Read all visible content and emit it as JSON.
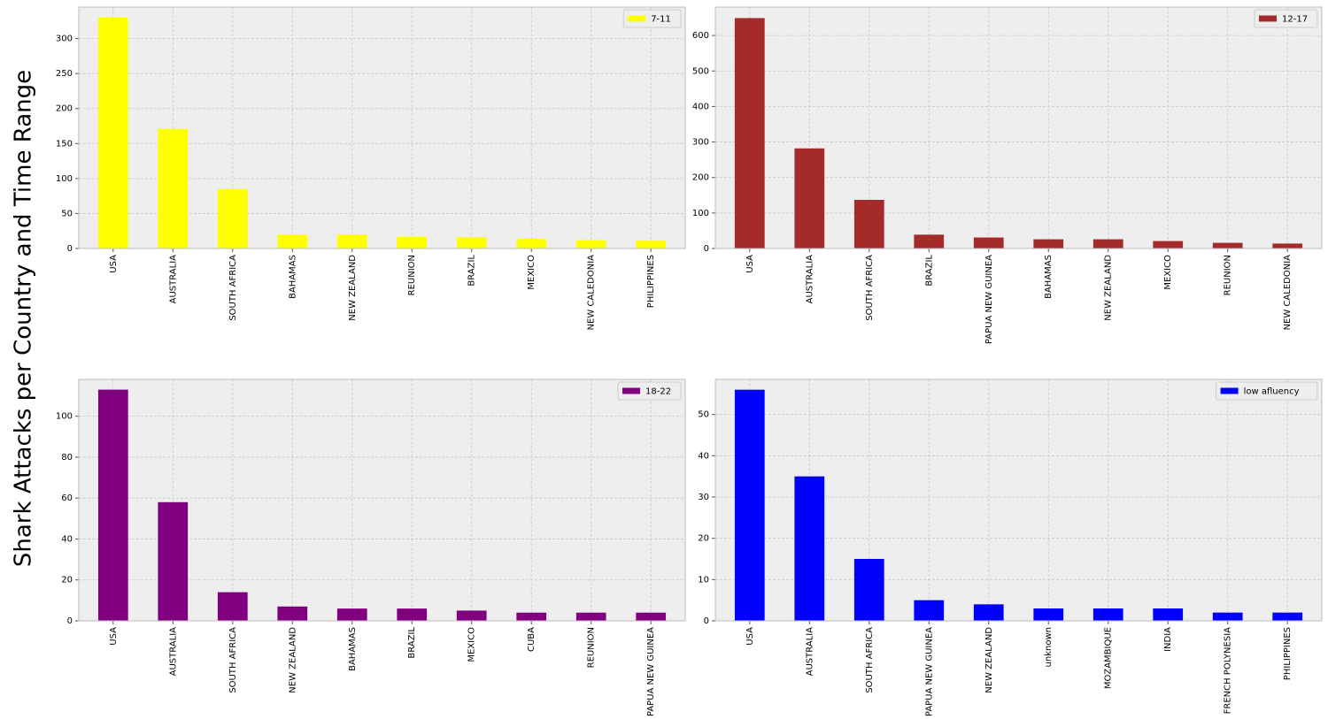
{
  "figure": {
    "ylabel": "Shark Attacks per Country and Time Range",
    "background": "#ffffff",
    "axes_facecolor": "#eeeeee",
    "grid_color": "#c8c8c8",
    "spine_color": "#bcbcbc"
  },
  "chart_data": [
    {
      "type": "bar",
      "categories": [
        "USA",
        "AUSTRALIA",
        "SOUTH AFRICA",
        "BAHAMAS",
        "NEW ZEALAND",
        "REUNION",
        "BRAZIL",
        "MEXICO",
        "NEW CALEDONIA",
        "PHILIPPINES"
      ],
      "series": [
        {
          "name": "7-11",
          "values": [
            330,
            171,
            85,
            20,
            20,
            17,
            16,
            14,
            12,
            11
          ],
          "color": "#ffff00"
        }
      ],
      "ylim": [
        0,
        345
      ],
      "yticks": [
        0,
        50,
        100,
        150,
        200,
        250,
        300
      ],
      "grid": true,
      "legend_loc": "upper right"
    },
    {
      "type": "bar",
      "categories": [
        "USA",
        "AUSTRALIA",
        "SOUTH AFRICA",
        "BRAZIL",
        "PAPUA NEW GUINEA",
        "BAHAMAS",
        "NEW ZEALAND",
        "MEXICO",
        "REUNION",
        "NEW CALEDONIA"
      ],
      "series": [
        {
          "name": "12-17",
          "values": [
            649,
            282,
            137,
            39,
            31,
            26,
            26,
            21,
            16,
            14
          ],
          "color": "#a52a2a"
        }
      ],
      "ylim": [
        0,
        680
      ],
      "yticks": [
        0,
        100,
        200,
        300,
        400,
        500,
        600
      ],
      "grid": true,
      "legend_loc": "upper right"
    },
    {
      "type": "bar",
      "categories": [
        "USA",
        "AUSTRALIA",
        "SOUTH AFRICA",
        "NEW ZEALAND",
        "BAHAMAS",
        "BRAZIL",
        "MEXICO",
        "CUBA",
        "REUNION",
        "PAPUA NEW GUINEA"
      ],
      "series": [
        {
          "name": "18-22",
          "values": [
            113,
            58,
            14,
            7,
            6,
            6,
            5,
            4,
            4,
            4
          ],
          "color": "#800080"
        }
      ],
      "ylim": [
        0,
        118
      ],
      "yticks": [
        0,
        20,
        40,
        60,
        80,
        100
      ],
      "grid": true,
      "legend_loc": "upper right"
    },
    {
      "type": "bar",
      "categories": [
        "USA",
        "AUSTRALIA",
        "SOUTH AFRICA",
        "PAPUA NEW GUINEA",
        "NEW ZEALAND",
        "unknown",
        "MOZAMBIQUE",
        "INDIA",
        "FRENCH POLYNESIA",
        "PHILIPPINES"
      ],
      "series": [
        {
          "name": "low afluency",
          "values": [
            56,
            35,
            15,
            5,
            4,
            3,
            3,
            3,
            2,
            2
          ],
          "color": "#0000ff"
        }
      ],
      "ylim": [
        0,
        58.5
      ],
      "yticks": [
        0,
        10,
        20,
        30,
        40,
        50
      ],
      "grid": true,
      "legend_loc": "upper right"
    }
  ]
}
